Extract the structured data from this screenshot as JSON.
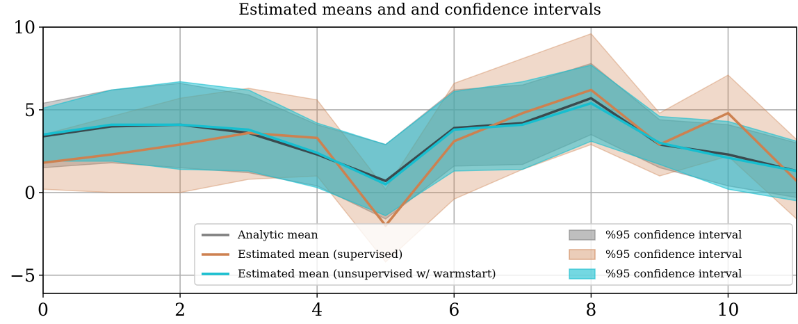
{
  "chart_data": {
    "type": "line",
    "title": "Estimated means and and confidence intervals",
    "xlabel": "",
    "ylabel": "",
    "xlim": [
      0,
      11
    ],
    "ylim": [
      -6.1,
      10
    ],
    "xticks": [
      0,
      2,
      4,
      6,
      8,
      10
    ],
    "yticks": [
      -5,
      0,
      5,
      10
    ],
    "xtick_labels": [
      "0",
      "2",
      "4",
      "6",
      "8",
      "10"
    ],
    "ytick_labels": [
      "−5",
      "0",
      "5",
      "10"
    ],
    "grid": true,
    "legend_placement": "lower-right",
    "x": [
      0,
      1,
      2,
      3,
      4,
      5,
      6,
      7,
      8,
      9,
      10,
      11
    ],
    "series": [
      {
        "name": "Analytic mean",
        "color": "#7f7f7f",
        "values": [
          3.4,
          4.0,
          4.1,
          3.6,
          2.3,
          0.7,
          3.9,
          4.2,
          5.7,
          2.9,
          2.3,
          1.3
        ]
      },
      {
        "name": "Estimated mean (supervised)",
        "color": "#cd8150",
        "values": [
          1.8,
          2.3,
          2.9,
          3.6,
          3.3,
          -2.0,
          3.1,
          4.8,
          6.2,
          2.9,
          4.8,
          0.7
        ]
      },
      {
        "name": "Estimated mean (unsupervised w/ warmstart)",
        "color": "#17becf",
        "values": [
          3.5,
          4.1,
          4.1,
          3.8,
          2.4,
          0.5,
          3.8,
          4.1,
          5.4,
          3.0,
          2.1,
          1.3
        ]
      }
    ],
    "intervals": [
      {
        "name": "%95 confidence interval",
        "color": "#7f7f7f",
        "upper": [
          5.4,
          6.2,
          6.6,
          5.9,
          4.1,
          2.9,
          6.2,
          6.5,
          7.8,
          4.4,
          4.1,
          3.0
        ],
        "lower": [
          1.5,
          1.8,
          1.5,
          1.2,
          0.4,
          -1.6,
          1.6,
          1.7,
          3.5,
          1.5,
          0.4,
          -0.3
        ]
      },
      {
        "name": "%95 confidence interval",
        "color": "#cd8150",
        "upper": [
          3.5,
          4.6,
          5.7,
          6.3,
          5.6,
          0.2,
          6.6,
          8.1,
          9.6,
          4.8,
          7.1,
          3.2
        ],
        "lower": [
          0.2,
          0.0,
          0.0,
          0.8,
          1.0,
          -4.2,
          -0.4,
          1.4,
          2.9,
          1.0,
          2.2,
          -1.6
        ]
      },
      {
        "name": "%95 confidence interval",
        "color": "#17becf",
        "upper": [
          5.1,
          6.2,
          6.7,
          6.2,
          4.2,
          2.9,
          6.1,
          6.7,
          7.7,
          4.6,
          4.3,
          3.1
        ],
        "lower": [
          1.9,
          1.9,
          1.4,
          1.3,
          0.3,
          -1.4,
          1.3,
          1.4,
          3.1,
          1.7,
          0.2,
          -0.5
        ]
      }
    ]
  }
}
